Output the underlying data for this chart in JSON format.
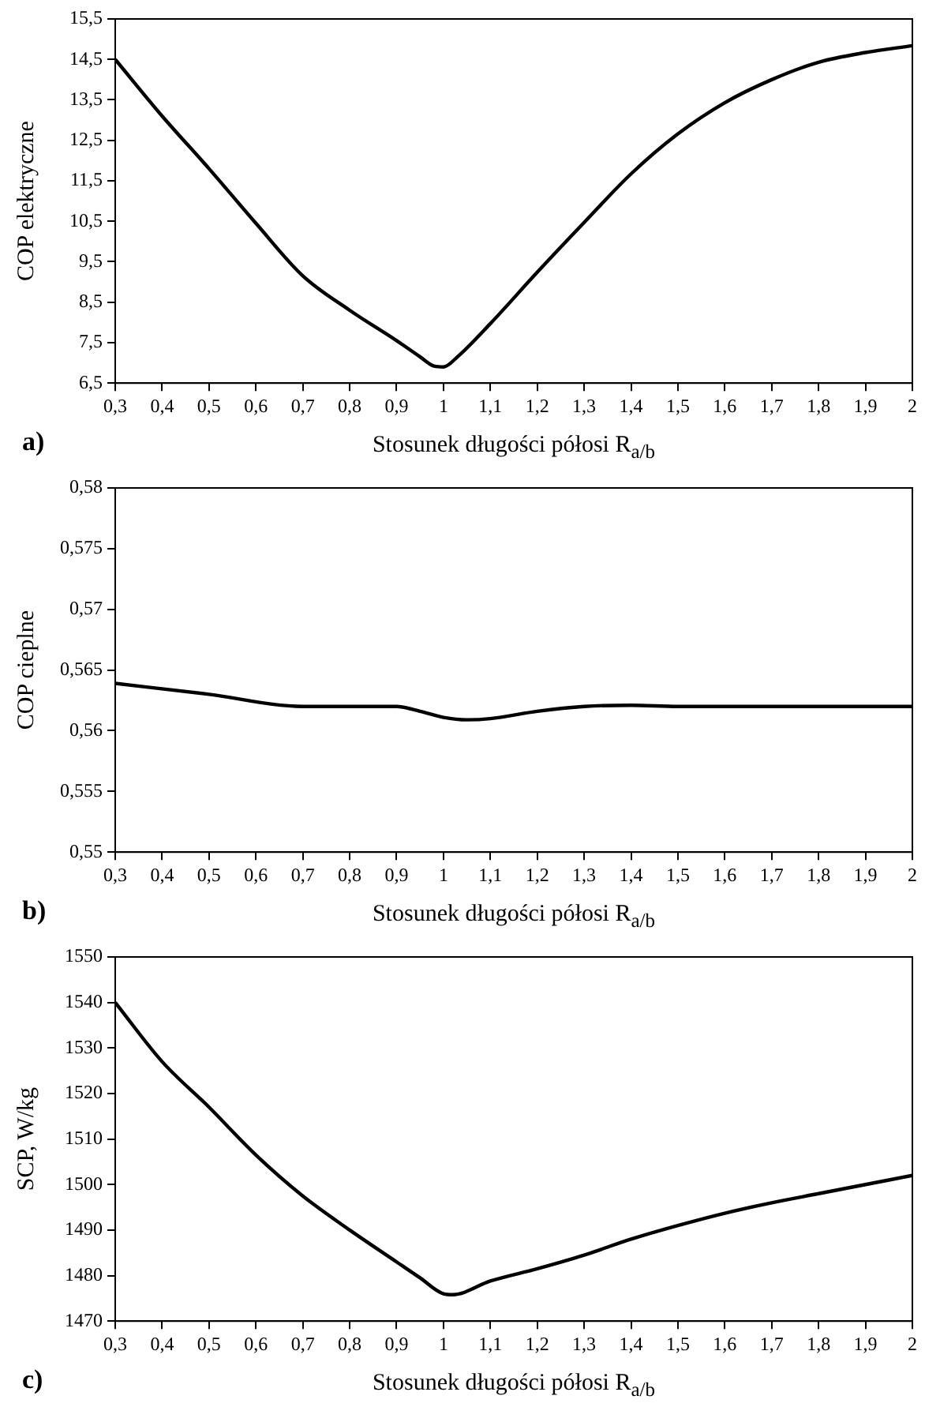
{
  "chart_data": [
    {
      "type": "line",
      "ylabel": "COP elektryczne",
      "xlabel": "Stosunek długości półosi R$_{a/b}$",
      "annotations": [
        "a)"
      ],
      "grid": false,
      "legend": false,
      "marker": "none",
      "line_style": "solid",
      "x": [
        0.3,
        0.4,
        0.5,
        0.6,
        0.7,
        0.8,
        0.9,
        0.95,
        0.98,
        1.0,
        1.03,
        1.1,
        1.2,
        1.3,
        1.4,
        1.5,
        1.6,
        1.7,
        1.8,
        1.9,
        2.0
      ],
      "series": [
        {
          "color": "#000000",
          "values": [
            14.5,
            13.1,
            11.8,
            10.45,
            9.15,
            8.3,
            7.55,
            7.15,
            6.92,
            6.9,
            7.15,
            7.97,
            9.24,
            10.47,
            11.67,
            12.66,
            13.43,
            14.0,
            14.43,
            14.67,
            14.84
          ]
        }
      ],
      "xlim": [
        0.3,
        2
      ],
      "xticks": [
        {
          "value": 0.3,
          "label": "0,3"
        },
        {
          "value": 0.4,
          "label": "0,4"
        },
        {
          "value": 0.5,
          "label": "0,5"
        },
        {
          "value": 0.6,
          "label": "0,6"
        },
        {
          "value": 0.7,
          "label": "0,7"
        },
        {
          "value": 0.8,
          "label": "0,8"
        },
        {
          "value": 0.9,
          "label": "0,9"
        },
        {
          "value": 1,
          "label": "1"
        },
        {
          "value": 1.1,
          "label": "1,1"
        },
        {
          "value": 1.2,
          "label": "1,2"
        },
        {
          "value": 1.3,
          "label": "1,3"
        },
        {
          "value": 1.4,
          "label": "1,4"
        },
        {
          "value": 1.5,
          "label": "1,5"
        },
        {
          "value": 1.6,
          "label": "1,6"
        },
        {
          "value": 1.7,
          "label": "1,7"
        },
        {
          "value": 1.8,
          "label": "1,8"
        },
        {
          "value": 1.9,
          "label": "1,9"
        },
        {
          "value": 2,
          "label": "2"
        }
      ],
      "ylim": [
        6.5,
        15.5
      ],
      "yticks": [
        {
          "value": 6.5,
          "label": "6,5"
        },
        {
          "value": 7.5,
          "label": "7,5"
        },
        {
          "value": 8.5,
          "label": "8,5"
        },
        {
          "value": 9.5,
          "label": "9,5"
        },
        {
          "value": 10.5,
          "label": "10,5"
        },
        {
          "value": 11.5,
          "label": "11,5"
        },
        {
          "value": 12.5,
          "label": "12,5"
        },
        {
          "value": 13.5,
          "label": "13,5"
        },
        {
          "value": 14.5,
          "label": "14,5"
        },
        {
          "value": 15.5,
          "label": "15,5"
        }
      ]
    },
    {
      "type": "line",
      "ylabel": "COP cieplne",
      "xlabel": "Stosunek długości półosi R$_{a/b}$",
      "annotations": [
        "b)"
      ],
      "grid": false,
      "legend": false,
      "marker": "none",
      "line_style": "solid",
      "x": [
        0.3,
        0.5,
        0.7,
        0.8,
        0.9,
        0.95,
        1.0,
        1.05,
        1.1,
        1.2,
        1.3,
        1.4,
        1.5,
        1.6,
        1.7,
        1.8,
        1.9,
        2.0
      ],
      "series": [
        {
          "color": "#000000",
          "values": [
            0.5639,
            0.563,
            0.562,
            0.562,
            0.562,
            0.5616,
            0.5611,
            0.5609,
            0.561,
            0.5616,
            0.562,
            0.5621,
            0.562,
            0.562,
            0.562,
            0.562,
            0.562,
            0.562
          ]
        }
      ],
      "xlim": [
        0.3,
        2
      ],
      "xticks": [
        {
          "value": 0.3,
          "label": "0,3"
        },
        {
          "value": 0.4,
          "label": "0,4"
        },
        {
          "value": 0.5,
          "label": "0,5"
        },
        {
          "value": 0.6,
          "label": "0,6"
        },
        {
          "value": 0.7,
          "label": "0,7"
        },
        {
          "value": 0.8,
          "label": "0,8"
        },
        {
          "value": 0.9,
          "label": "0,9"
        },
        {
          "value": 1,
          "label": "1"
        },
        {
          "value": 1.1,
          "label": "1,1"
        },
        {
          "value": 1.2,
          "label": "1,2"
        },
        {
          "value": 1.3,
          "label": "1,3"
        },
        {
          "value": 1.4,
          "label": "1,4"
        },
        {
          "value": 1.5,
          "label": "1,5"
        },
        {
          "value": 1.6,
          "label": "1,6"
        },
        {
          "value": 1.7,
          "label": "1,7"
        },
        {
          "value": 1.8,
          "label": "1,8"
        },
        {
          "value": 1.9,
          "label": "1,9"
        },
        {
          "value": 2,
          "label": "2"
        }
      ],
      "ylim": [
        0.55,
        0.58
      ],
      "yticks": [
        {
          "value": 0.55,
          "label": "0,55"
        },
        {
          "value": 0.555,
          "label": "0,555"
        },
        {
          "value": 0.56,
          "label": "0,56"
        },
        {
          "value": 0.565,
          "label": "0,565"
        },
        {
          "value": 0.57,
          "label": "0,57"
        },
        {
          "value": 0.575,
          "label": "0,575"
        },
        {
          "value": 0.58,
          "label": "0,58"
        }
      ]
    },
    {
      "type": "line",
      "ylabel": "SCP, W/kg",
      "xlabel": "Stosunek długości półosi R$_{a/b}$",
      "annotations": [
        "c)"
      ],
      "grid": false,
      "legend": false,
      "marker": "none",
      "line_style": "solid",
      "x": [
        0.3,
        0.4,
        0.5,
        0.6,
        0.7,
        0.8,
        0.9,
        0.95,
        1.0,
        1.02,
        1.1,
        1.2,
        1.3,
        1.4,
        1.5,
        1.6,
        1.7,
        1.8,
        1.9,
        2.0
      ],
      "series": [
        {
          "color": "#000000",
          "values": [
            1540,
            1527,
            1517,
            1506.5,
            1497.5,
            1490,
            1483,
            1479.5,
            1476,
            1475.8,
            1478.8,
            1481.5,
            1484.5,
            1488,
            1491,
            1493.7,
            1496,
            1498,
            1500,
            1502
          ]
        }
      ],
      "xlim": [
        0.3,
        2
      ],
      "xticks": [
        {
          "value": 0.3,
          "label": "0,3"
        },
        {
          "value": 0.4,
          "label": "0,4"
        },
        {
          "value": 0.5,
          "label": "0,5"
        },
        {
          "value": 0.6,
          "label": "0,6"
        },
        {
          "value": 0.7,
          "label": "0,7"
        },
        {
          "value": 0.8,
          "label": "0,8"
        },
        {
          "value": 0.9,
          "label": "0,9"
        },
        {
          "value": 1,
          "label": "1"
        },
        {
          "value": 1.1,
          "label": "1,1"
        },
        {
          "value": 1.2,
          "label": "1,2"
        },
        {
          "value": 1.3,
          "label": "1,3"
        },
        {
          "value": 1.4,
          "label": "1,4"
        },
        {
          "value": 1.5,
          "label": "1,5"
        },
        {
          "value": 1.6,
          "label": "1,6"
        },
        {
          "value": 1.7,
          "label": "1,7"
        },
        {
          "value": 1.8,
          "label": "1,8"
        },
        {
          "value": 1.9,
          "label": "1,9"
        },
        {
          "value": 2,
          "label": "2"
        }
      ],
      "ylim": [
        1470,
        1550
      ],
      "yticks": [
        1470,
        1480,
        1490,
        1500,
        1510,
        1520,
        1530,
        1540,
        1550
      ]
    }
  ]
}
